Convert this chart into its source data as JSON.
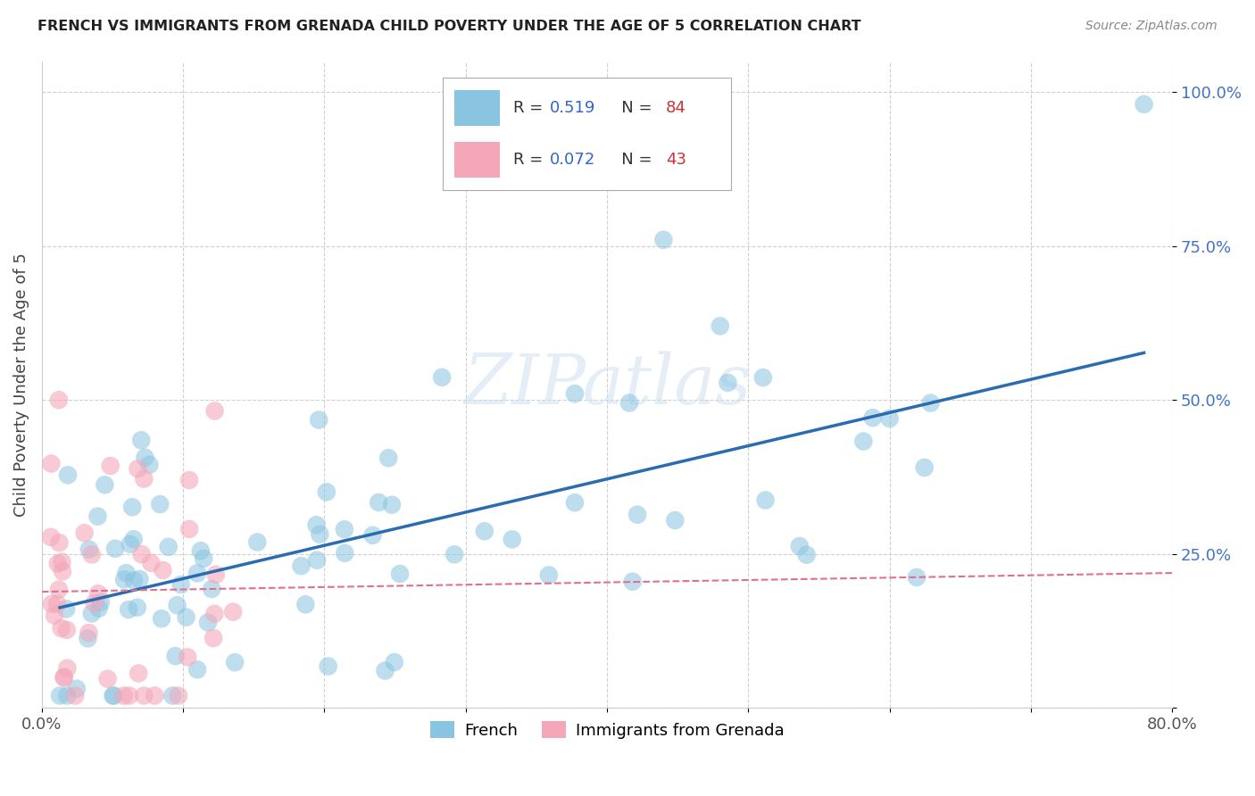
{
  "title": "FRENCH VS IMMIGRANTS FROM GRENADA CHILD POVERTY UNDER THE AGE OF 5 CORRELATION CHART",
  "source": "Source: ZipAtlas.com",
  "ylabel": "Child Poverty Under the Age of 5",
  "xlim": [
    0,
    0.8
  ],
  "ylim": [
    0,
    1.05
  ],
  "xticks": [
    0.0,
    0.1,
    0.2,
    0.3,
    0.4,
    0.5,
    0.6,
    0.7,
    0.8
  ],
  "xticklabels": [
    "0.0%",
    "",
    "",
    "",
    "",
    "",
    "",
    "",
    "80.0%"
  ],
  "yticks": [
    0.0,
    0.25,
    0.5,
    0.75,
    1.0
  ],
  "yticklabels": [
    "",
    "25.0%",
    "50.0%",
    "75.0%",
    "100.0%"
  ],
  "french_color": "#89c4e1",
  "grenada_color": "#f4a7b9",
  "french_line_color": "#2b6cb0",
  "grenada_line_color": "#e07090",
  "french_R": 0.519,
  "french_N": 84,
  "grenada_R": 0.072,
  "grenada_N": 43,
  "watermark": "ZIPatlas",
  "grid_color": "#d0d0d0",
  "title_color": "#222222",
  "source_color": "#888888",
  "ylabel_color": "#444444",
  "ytick_color": "#4472C4",
  "xtick_color": "#555555"
}
